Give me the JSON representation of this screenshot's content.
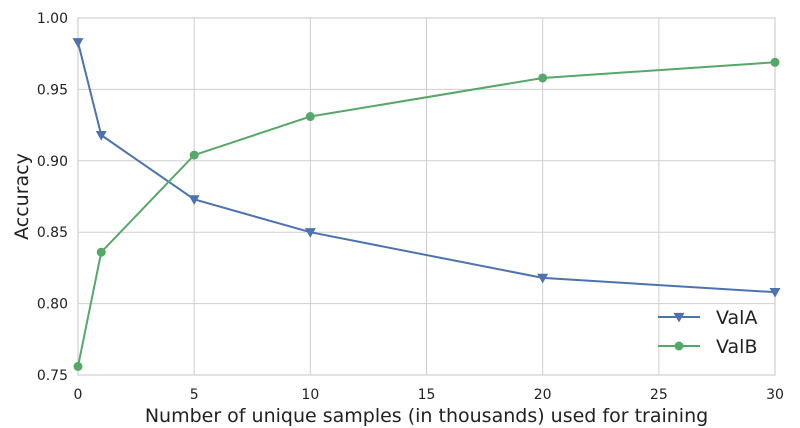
{
  "chart_data": {
    "type": "line",
    "title": "",
    "xlabel": "Number of unique samples (in thousands) used for training",
    "ylabel": "Accuracy",
    "xlim": [
      0,
      30
    ],
    "ylim": [
      0.75,
      1.0
    ],
    "xticks": [
      0,
      5,
      10,
      15,
      20,
      25,
      30
    ],
    "yticks": [
      0.75,
      0.8,
      0.85,
      0.9,
      0.95,
      1.0
    ],
    "xtick_labels": [
      "0",
      "5",
      "10",
      "15",
      "20",
      "25",
      "30"
    ],
    "ytick_labels": [
      "0.75",
      "0.80",
      "0.85",
      "0.90",
      "0.95",
      "1.00"
    ],
    "grid": true,
    "legend_position": "bottom-right",
    "series": [
      {
        "name": "ValA",
        "color": "#4c72b0",
        "marker": "triangle-down",
        "x": [
          0,
          1,
          5,
          10,
          20,
          30
        ],
        "y": [
          0.983,
          0.918,
          0.873,
          0.85,
          0.818,
          0.808
        ]
      },
      {
        "name": "ValB",
        "color": "#55a868",
        "marker": "circle",
        "x": [
          0,
          1,
          5,
          10,
          20,
          30
        ],
        "y": [
          0.756,
          0.836,
          0.904,
          0.931,
          0.958,
          0.969
        ]
      }
    ]
  }
}
